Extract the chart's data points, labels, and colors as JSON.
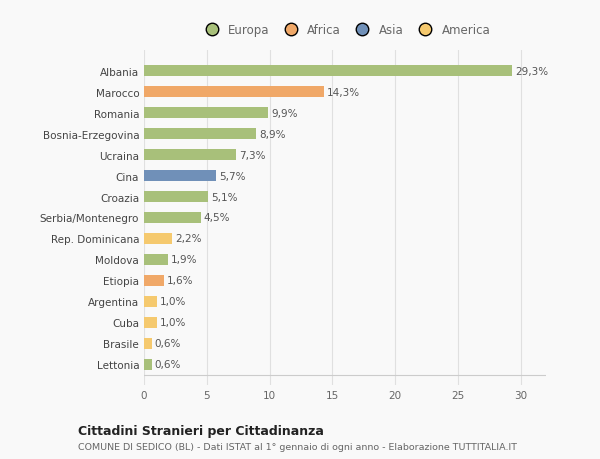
{
  "categories": [
    "Albania",
    "Marocco",
    "Romania",
    "Bosnia-Erzegovina",
    "Ucraina",
    "Cina",
    "Croazia",
    "Serbia/Montenegro",
    "Rep. Dominicana",
    "Moldova",
    "Etiopia",
    "Argentina",
    "Cuba",
    "Brasile",
    "Lettonia"
  ],
  "values": [
    29.3,
    14.3,
    9.9,
    8.9,
    7.3,
    5.7,
    5.1,
    4.5,
    2.2,
    1.9,
    1.6,
    1.0,
    1.0,
    0.6,
    0.6
  ],
  "labels": [
    "29,3%",
    "14,3%",
    "9,9%",
    "8,9%",
    "7,3%",
    "5,7%",
    "5,1%",
    "4,5%",
    "2,2%",
    "1,9%",
    "1,6%",
    "1,0%",
    "1,0%",
    "0,6%",
    "0,6%"
  ],
  "colors": [
    "#a8c07a",
    "#f0a868",
    "#a8c07a",
    "#a8c07a",
    "#a8c07a",
    "#7090b8",
    "#a8c07a",
    "#a8c07a",
    "#f5c96e",
    "#a8c07a",
    "#f0a868",
    "#f5c96e",
    "#f5c96e",
    "#f5c96e",
    "#a8c07a"
  ],
  "legend_labels": [
    "Europa",
    "Africa",
    "Asia",
    "America"
  ],
  "legend_colors": [
    "#a8c07a",
    "#f0a868",
    "#7090b8",
    "#f5c96e"
  ],
  "title1": "Cittadini Stranieri per Cittadinanza",
  "title2": "COMUNE DI SEDICO (BL) - Dati ISTAT al 1° gennaio di ogni anno - Elaborazione TUTTITALIA.IT",
  "xlim": [
    0,
    32
  ],
  "xticks": [
    0,
    5,
    10,
    15,
    20,
    25,
    30
  ],
  "bg_color": "#f9f9f9",
  "grid_color": "#e0e0e0",
  "bar_height": 0.55
}
